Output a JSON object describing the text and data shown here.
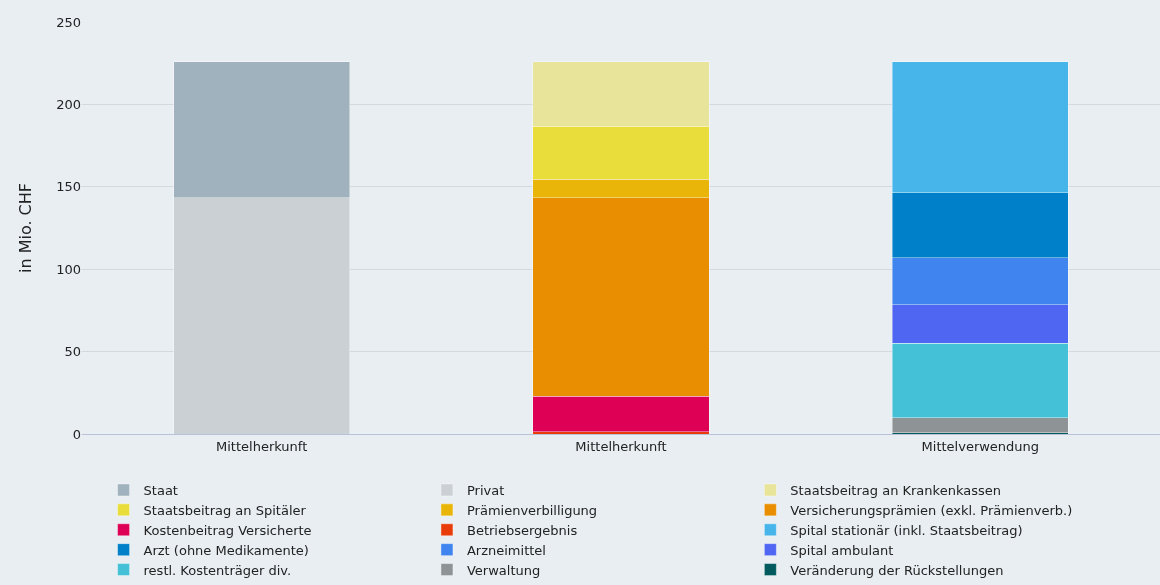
{
  "chart_data": {
    "type": "bar",
    "stacked": true,
    "ylabel": "in Mio. CHF",
    "categories": [
      "Mittelherkunft",
      "Mittelherkunft",
      "Mittelverwendung"
    ],
    "ylim": [
      0,
      250
    ],
    "yticks": [
      0,
      50,
      100,
      150,
      200,
      250
    ],
    "grid": "y",
    "legend": "bottom",
    "series": [
      {
        "name": "Privat",
        "color": "#cbd0d4",
        "values": [
          143.4,
          null,
          null
        ]
      },
      {
        "name": "Staat",
        "color": "#a0b2bd",
        "values": [
          82.6,
          null,
          null
        ]
      },
      {
        "name": "Betriebsergebnis",
        "color": "#e83d0a",
        "values": [
          null,
          1.5,
          null
        ]
      },
      {
        "name": "Kostenbeitrag Versicherte",
        "color": "#dd0055",
        "values": [
          null,
          21.3,
          null
        ]
      },
      {
        "name": "Versicherungsprämien (exkl. Prämienverb.)",
        "color": "#e88e00",
        "values": [
          null,
          120.6,
          null
        ]
      },
      {
        "name": "Prämienverbilligung",
        "color": "#e8b508",
        "values": [
          null,
          11.2,
          null
        ]
      },
      {
        "name": "Staatsbeitrag an Spitäler",
        "color": "#e8dd3a",
        "values": [
          null,
          32.2,
          null
        ]
      },
      {
        "name": "Staatsbeitrag an Krankenkassen",
        "color": "#e8e49a",
        "values": [
          null,
          39.2,
          null
        ]
      },
      {
        "name": "Veränderung der Rückstellungen",
        "color": "#005a5e",
        "values": [
          null,
          null,
          0.8
        ]
      },
      {
        "name": "Verwaltung",
        "color": "#8e9496",
        "values": [
          null,
          null,
          9.2
        ]
      },
      {
        "name": "restl. Kostenträger div.",
        "color": "#45c1d7",
        "values": [
          null,
          null,
          45
        ]
      },
      {
        "name": "Spital ambulant",
        "color": "#4f66f2",
        "values": [
          null,
          null,
          23.5
        ]
      },
      {
        "name": "Arzneimittel",
        "color": "#3f84ef",
        "values": [
          null,
          null,
          28.6
        ]
      },
      {
        "name": "Arzt (ohne Medikamente)",
        "color": "#0080c8",
        "values": [
          null,
          null,
          39.3
        ]
      },
      {
        "name": "Spital stationär (inkl. Staatsbeitrag)",
        "color": "#47b5ea",
        "values": [
          null,
          null,
          79.6
        ]
      }
    ]
  }
}
